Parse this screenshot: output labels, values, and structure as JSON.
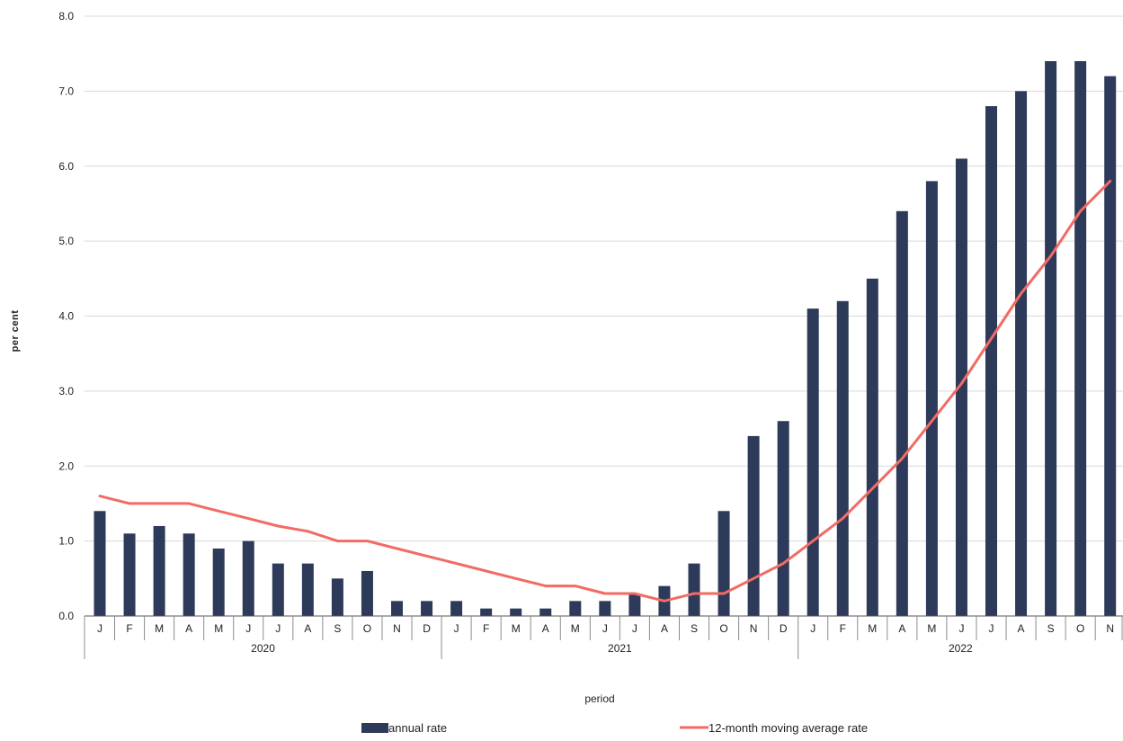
{
  "chart_data": {
    "type": "bar",
    "xlabel": "period",
    "ylabel": "per cent",
    "ylim": [
      0,
      8
    ],
    "yticks": [
      "0.0",
      "1.0",
      "2.0",
      "3.0",
      "4.0",
      "5.0",
      "6.0",
      "7.0",
      "8.0"
    ],
    "grid": "horizontal",
    "legend_position": "bottom",
    "years": [
      "2020",
      "2021",
      "2022"
    ],
    "categories": [
      "J",
      "F",
      "M",
      "A",
      "M",
      "J",
      "J",
      "A",
      "S",
      "O",
      "N",
      "D",
      "J",
      "F",
      "M",
      "A",
      "M",
      "J",
      "J",
      "A",
      "S",
      "O",
      "N",
      "D",
      "J",
      "F",
      "M",
      "A",
      "M",
      "J",
      "J",
      "A",
      "S",
      "O",
      "N"
    ],
    "series": [
      {
        "name": "annual rate",
        "type": "bar",
        "color": "#2e3a59",
        "values": [
          1.4,
          1.1,
          1.2,
          1.1,
          0.9,
          1.0,
          0.7,
          0.7,
          0.5,
          0.6,
          0.2,
          0.2,
          0.2,
          0.1,
          0.1,
          0.1,
          0.2,
          0.2,
          0.3,
          0.4,
          0.7,
          1.4,
          2.4,
          2.6,
          4.1,
          4.2,
          4.5,
          5.4,
          5.8,
          6.1,
          6.8,
          7.0,
          7.4,
          7.4,
          7.2
        ]
      },
      {
        "name": "12-month moving average rate",
        "type": "line",
        "color": "#f26b64",
        "values": [
          1.6,
          1.5,
          1.5,
          1.5,
          1.4,
          1.3,
          1.2,
          1.13,
          1.0,
          1.0,
          0.9,
          0.8,
          0.7,
          0.6,
          0.5,
          0.4,
          0.4,
          0.3,
          0.3,
          0.2,
          0.3,
          0.3,
          0.5,
          0.7,
          1.0,
          1.3,
          1.7,
          2.1,
          2.6,
          3.1,
          3.7,
          4.3,
          4.8,
          5.4,
          5.8
        ]
      }
    ]
  }
}
